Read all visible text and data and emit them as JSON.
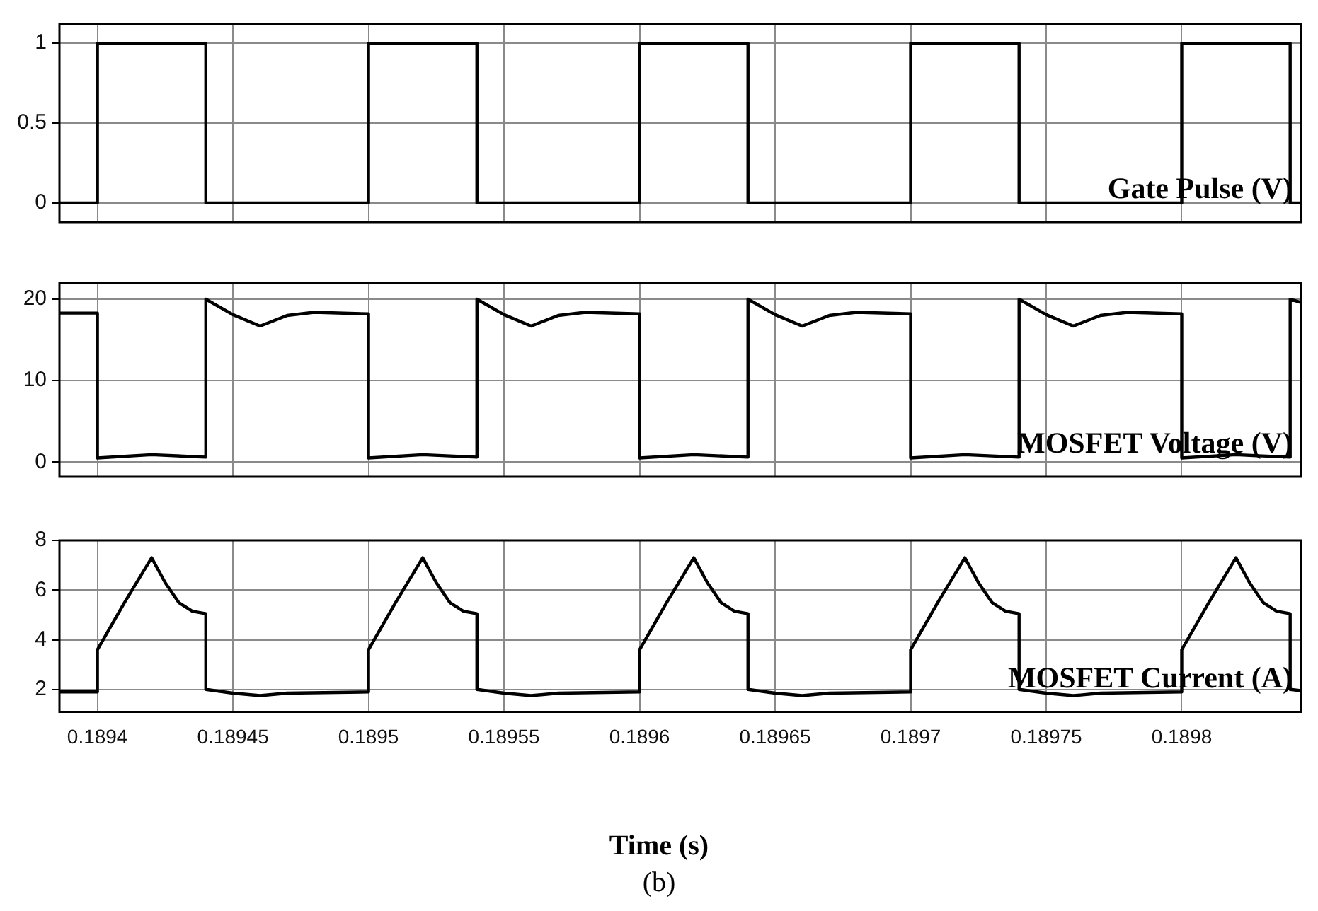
{
  "chart_data": [
    {
      "type": "line",
      "color": "#000000",
      "annotations": [
        "Gate Pulse (V)"
      ],
      "x": [
        0.189386,
        0.1894,
        0.1894,
        0.18944,
        0.18944,
        0.1895,
        0.1895,
        0.18954,
        0.18954,
        0.1896,
        0.1896,
        0.18964,
        0.18964,
        0.1897,
        0.1897,
        0.18974,
        0.18974,
        0.1898,
        0.1898,
        0.18984,
        0.18984,
        0.189844
      ],
      "values": [
        0,
        0,
        1,
        1,
        0,
        0,
        1,
        1,
        0,
        0,
        1,
        1,
        0,
        0,
        1,
        1,
        0,
        0,
        1,
        1,
        0,
        0
      ],
      "xlim": [
        0.189386,
        0.189844
      ],
      "xticks": [
        0.1894,
        0.18945,
        0.1895,
        0.18955,
        0.1896,
        0.18965,
        0.1897,
        0.18975,
        0.1898
      ],
      "ylim": [
        -0.12,
        1.12
      ],
      "yticks": [
        0,
        0.5,
        1
      ],
      "grid": true,
      "tick_labels": "y"
    },
    {
      "type": "line",
      "color": "#000000",
      "annotations": [
        "MOSFET Voltage (V)"
      ],
      "x": [
        0.189386,
        0.1894,
        0.1894,
        0.18942,
        0.18944,
        0.18944,
        0.18945,
        0.18946,
        0.18947,
        0.18948,
        0.1895,
        0.1895,
        0.18952,
        0.18954,
        0.18954,
        0.18955,
        0.18956,
        0.18957,
        0.18958,
        0.1896,
        0.1896,
        0.18962,
        0.18964,
        0.18964,
        0.18965,
        0.18966,
        0.18967,
        0.18968,
        0.1897,
        0.1897,
        0.18972,
        0.18974,
        0.18974,
        0.18975,
        0.18976,
        0.18977,
        0.18978,
        0.1898,
        0.1898,
        0.18982,
        0.18984,
        0.18984,
        0.189844
      ],
      "values": [
        18.3,
        18.3,
        0.5,
        0.9,
        0.6,
        20,
        18.1,
        16.7,
        18,
        18.4,
        18.2,
        0.5,
        0.9,
        0.6,
        20,
        18.1,
        16.7,
        18,
        18.4,
        18.2,
        0.5,
        0.9,
        0.6,
        20,
        18.1,
        16.7,
        18,
        18.4,
        18.2,
        0.5,
        0.9,
        0.6,
        20,
        18.1,
        16.7,
        18,
        18.4,
        18.2,
        0.5,
        0.9,
        0.6,
        20,
        19.6
      ],
      "xlim": [
        0.189386,
        0.189844
      ],
      "xticks": [
        0.1894,
        0.18945,
        0.1895,
        0.18955,
        0.1896,
        0.18965,
        0.1897,
        0.18975,
        0.1898
      ],
      "ylim": [
        -1.8,
        22
      ],
      "yticks": [
        0,
        10,
        20
      ],
      "grid": true,
      "tick_labels": "y"
    },
    {
      "type": "line",
      "color": "#000000",
      "xlabel": "Time (s)",
      "annotations": [
        "MOSFET Current (A)",
        "(b)"
      ],
      "x": [
        0.189386,
        0.1894,
        0.1894,
        0.18941,
        0.18942,
        0.189425,
        0.18943,
        0.189435,
        0.18944,
        0.18944,
        0.18945,
        0.18946,
        0.18947,
        0.1895,
        0.1895,
        0.18951,
        0.18952,
        0.189525,
        0.18953,
        0.189535,
        0.18954,
        0.18954,
        0.18955,
        0.18956,
        0.18957,
        0.1896,
        0.1896,
        0.18961,
        0.18962,
        0.189625,
        0.18963,
        0.189635,
        0.18964,
        0.18964,
        0.18965,
        0.18966,
        0.18967,
        0.1897,
        0.1897,
        0.18971,
        0.18972,
        0.189725,
        0.18973,
        0.189735,
        0.18974,
        0.18974,
        0.18975,
        0.18976,
        0.18977,
        0.1898,
        0.1898,
        0.18981,
        0.18982,
        0.189825,
        0.18983,
        0.189835,
        0.18984,
        0.18984,
        0.189844
      ],
      "values": [
        1.9,
        1.9,
        3.6,
        5.5,
        7.3,
        6.3,
        5.5,
        5.15,
        5.05,
        2,
        1.85,
        1.75,
        1.85,
        1.9,
        3.6,
        5.5,
        7.3,
        6.3,
        5.5,
        5.15,
        5.05,
        2,
        1.85,
        1.75,
        1.85,
        1.9,
        3.6,
        5.5,
        7.3,
        6.3,
        5.5,
        5.15,
        5.05,
        2,
        1.85,
        1.75,
        1.85,
        1.9,
        3.6,
        5.5,
        7.3,
        6.3,
        5.5,
        5.15,
        5.05,
        2,
        1.85,
        1.75,
        1.85,
        1.9,
        3.6,
        5.5,
        7.3,
        6.3,
        5.5,
        5.15,
        5.05,
        2,
        1.95
      ],
      "xlim": [
        0.189386,
        0.189844
      ],
      "xticks": [
        0.1894,
        0.18945,
        0.1895,
        0.18955,
        0.1896,
        0.18965,
        0.1897,
        0.18975,
        0.1898
      ],
      "ylim": [
        1.1,
        8
      ],
      "yticks": [
        2,
        4,
        6,
        8
      ],
      "grid": true
    }
  ]
}
